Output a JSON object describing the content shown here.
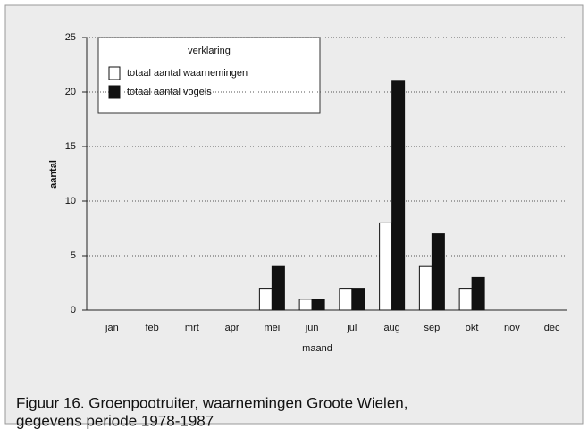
{
  "chart_data": {
    "type": "bar",
    "categories": [
      "jan",
      "feb",
      "mrt",
      "apr",
      "mei",
      "jun",
      "jul",
      "aug",
      "sep",
      "okt",
      "nov",
      "dec"
    ],
    "series": [
      {
        "name": "totaal aantal waarnemingen",
        "color": "#ffffff",
        "values": [
          0,
          0,
          0,
          0,
          2,
          1,
          2,
          8,
          4,
          2,
          0,
          0
        ]
      },
      {
        "name": "totaal aantal vogels",
        "color": "#111111",
        "values": [
          0,
          0,
          0,
          0,
          4,
          1,
          2,
          21,
          7,
          3,
          0,
          0
        ]
      }
    ],
    "legend_title": "verklaring",
    "xlabel": "maand",
    "ylabel": "aantal",
    "ylim": [
      0,
      25
    ],
    "yticks": [
      0,
      5,
      10,
      15,
      20,
      25
    ],
    "grid": true,
    "caption": [
      "Figuur 16. Groenpootruiter, waarnemingen Groote Wielen,",
      "gegevens periode 1978-1987"
    ]
  }
}
